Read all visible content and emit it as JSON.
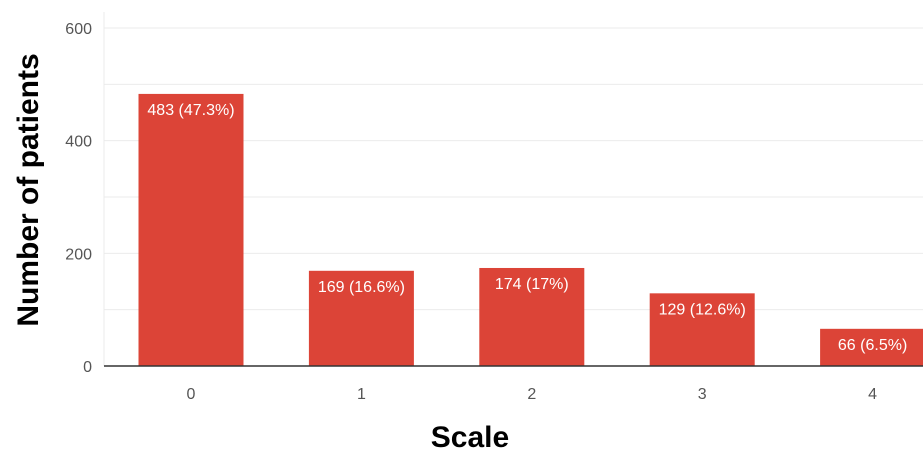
{
  "chart_data": {
    "type": "bar",
    "categories": [
      "0",
      "1",
      "2",
      "3",
      "4"
    ],
    "values": [
      483,
      169,
      174,
      129,
      66
    ],
    "data_labels": [
      "483 (47.3%)",
      "169 (16.6%)",
      "174 (17%)",
      "129 (12.6%)",
      "66 (6.5%)"
    ],
    "xlabel": "Scale",
    "ylabel": "Number of patients",
    "ylim": [
      0,
      600
    ],
    "yticks": [
      "0",
      "200",
      "400",
      "600"
    ],
    "ytick_values": [
      0,
      200,
      400,
      600
    ],
    "grid": true,
    "bar_color": "#dc4437",
    "grid_color": "#ebebeb",
    "axis_color": "#333333"
  }
}
